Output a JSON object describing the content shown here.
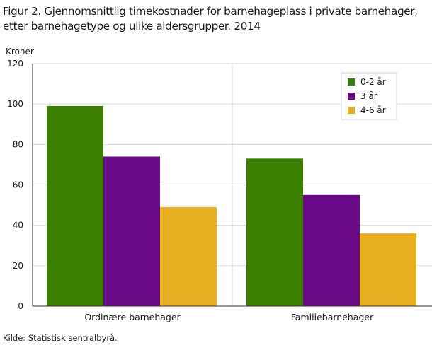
{
  "title": "Figur 2. Gjennomsnittlig timekostnader for barnehageplass i private barnehager, etter barnehagetype og ulike aldersgrupper. 2014",
  "source": "Kilde: Statistisk sentralbyrå.",
  "chart_data": {
    "type": "bar",
    "title": "Figur 2. Gjennomsnittlig timekostnader for barnehageplass i private barnehager, etter barnehagetype og ulike aldersgrupper. 2014",
    "ylabel": "Kroner",
    "xlabel": "",
    "ylim": [
      0,
      120
    ],
    "yticks": [
      0,
      20,
      40,
      60,
      80,
      100,
      120
    ],
    "categories": [
      "Ordinære barnehager",
      "Familiebarnehager"
    ],
    "series": [
      {
        "name": "0-2 år",
        "color": "#3b7f00",
        "values": [
          99,
          73
        ]
      },
      {
        "name": "3 år",
        "color": "#6b0a86",
        "values": [
          74,
          55
        ]
      },
      {
        "name": "4-6 år",
        "color": "#e8b020",
        "values": [
          49,
          36
        ]
      }
    ],
    "legend_position": "top-right",
    "grid": true
  }
}
